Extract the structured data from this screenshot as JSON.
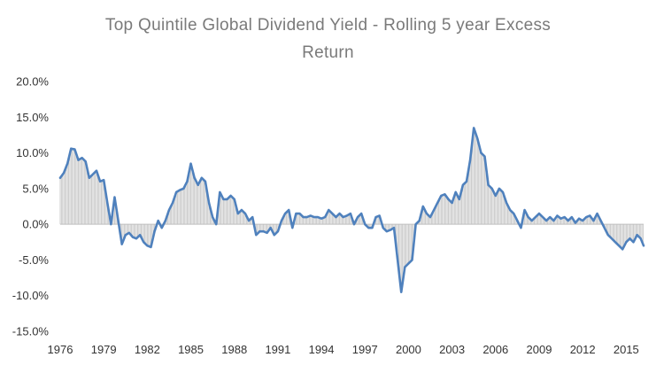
{
  "chart_data": {
    "type": "line",
    "title_lines": [
      "Top Quintile Global Dividend Yield - Rolling 5 year Excess",
      "Return"
    ],
    "xlabel": "",
    "ylabel": "",
    "ylim": [
      -15,
      20
    ],
    "xlim": [
      1976,
      2016.2
    ],
    "x_ticks": [
      "1976",
      "1979",
      "1982",
      "1985",
      "1988",
      "1991",
      "1994",
      "1997",
      "2000",
      "2003",
      "2006",
      "2009",
      "2012",
      "2015"
    ],
    "x_tick_values": [
      1976,
      1979,
      1982,
      1985,
      1988,
      1991,
      1994,
      1997,
      2000,
      2003,
      2006,
      2009,
      2012,
      2015
    ],
    "y_ticks": [
      "-15.0%",
      "-10.0%",
      "-5.0%",
      "0.0%",
      "5.0%",
      "10.0%",
      "15.0%",
      "20.0%"
    ],
    "y_tick_values": [
      -15,
      -10,
      -5,
      0,
      5,
      10,
      15,
      20
    ],
    "grid": false,
    "legend": "none",
    "colors": {
      "line": "#4f81bd",
      "fill": "#c8c8c8",
      "axis": "#bfbfbf",
      "title": "#7a7a7a"
    },
    "series": [
      {
        "x": [
          1976.0,
          1976.25,
          1976.5,
          1976.75,
          1977.0,
          1977.25,
          1977.5,
          1977.75,
          1978.0,
          1978.25,
          1978.5,
          1978.75,
          1979.0,
          1979.25,
          1979.5,
          1979.75,
          1980.0,
          1980.25,
          1980.5,
          1980.75,
          1981.0,
          1981.25,
          1981.5,
          1981.75,
          1982.0,
          1982.25,
          1982.5,
          1982.75,
          1983.0,
          1983.25,
          1983.5,
          1983.75,
          1984.0,
          1984.25,
          1984.5,
          1984.75,
          1985.0,
          1985.25,
          1985.5,
          1985.75,
          1986.0,
          1986.25,
          1986.5,
          1986.75,
          1987.0,
          1987.25,
          1987.5,
          1987.75,
          1988.0,
          1988.25,
          1988.5,
          1988.75,
          1989.0,
          1989.25,
          1989.5,
          1989.75,
          1990.0,
          1990.25,
          1990.5,
          1990.75,
          1991.0,
          1991.25,
          1991.5,
          1991.75,
          1992.0,
          1992.25,
          1992.5,
          1992.75,
          1993.0,
          1993.25,
          1993.5,
          1993.75,
          1994.0,
          1994.25,
          1994.5,
          1994.75,
          1995.0,
          1995.25,
          1995.5,
          1995.75,
          1996.0,
          1996.25,
          1996.5,
          1996.75,
          1997.0,
          1997.25,
          1997.5,
          1997.75,
          1998.0,
          1998.25,
          1998.5,
          1998.75,
          1999.0,
          1999.25,
          1999.5,
          1999.75,
          2000.0,
          2000.25,
          2000.5,
          2000.75,
          2001.0,
          2001.25,
          2001.5,
          2001.75,
          2002.0,
          2002.25,
          2002.5,
          2002.75,
          2003.0,
          2003.25,
          2003.5,
          2003.75,
          2004.0,
          2004.25,
          2004.5,
          2004.75,
          2005.0,
          2005.25,
          2005.5,
          2005.75,
          2006.0,
          2006.25,
          2006.5,
          2006.75,
          2007.0,
          2007.25,
          2007.5,
          2007.75,
          2008.0,
          2008.25,
          2008.5,
          2008.75,
          2009.0,
          2009.25,
          2009.5,
          2009.75,
          2010.0,
          2010.25,
          2010.5,
          2010.75,
          2011.0,
          2011.25,
          2011.5,
          2011.75,
          2012.0,
          2012.25,
          2012.5,
          2012.75,
          2013.0,
          2013.25,
          2013.5,
          2013.75,
          2014.0,
          2014.25,
          2014.5,
          2014.75,
          2015.0,
          2015.25,
          2015.5,
          2015.75,
          2016.0,
          2016.2
        ],
        "values": [
          6.5,
          7.2,
          8.5,
          10.6,
          10.5,
          9.0,
          9.3,
          8.8,
          6.5,
          7.0,
          7.5,
          6.0,
          6.2,
          3.0,
          0.0,
          3.8,
          0.5,
          -2.8,
          -1.5,
          -1.2,
          -1.8,
          -2.0,
          -1.5,
          -2.5,
          -3.0,
          -3.2,
          -1.0,
          0.5,
          -0.5,
          0.5,
          2.0,
          3.0,
          4.5,
          4.8,
          5.0,
          6.0,
          8.5,
          6.5,
          5.5,
          6.5,
          6.0,
          3.0,
          1.0,
          0.0,
          4.5,
          3.5,
          3.5,
          4.0,
          3.5,
          1.5,
          2.0,
          1.5,
          0.5,
          1.0,
          -1.5,
          -1.0,
          -1.0,
          -1.2,
          -0.5,
          -1.5,
          -1.0,
          0.5,
          1.5,
          2.0,
          -0.5,
          1.5,
          1.5,
          1.0,
          1.0,
          1.2,
          1.0,
          1.0,
          0.8,
          1.0,
          2.0,
          1.5,
          1.0,
          1.5,
          1.0,
          1.2,
          1.5,
          0.0,
          1.0,
          1.5,
          0.0,
          -0.5,
          -0.5,
          1.0,
          1.2,
          -0.5,
          -1.0,
          -0.8,
          -0.5,
          -5.0,
          -9.5,
          -6.0,
          -5.5,
          -5.0,
          0.0,
          0.5,
          2.5,
          1.5,
          1.0,
          2.0,
          3.0,
          4.0,
          4.2,
          3.5,
          3.0,
          4.5,
          3.5,
          5.5,
          6.0,
          9.0,
          13.5,
          12.0,
          10.0,
          9.5,
          5.5,
          5.0,
          4.0,
          5.0,
          4.5,
          3.0,
          2.0,
          1.5,
          0.5,
          -0.5,
          2.0,
          1.0,
          0.5,
          1.0,
          1.5,
          1.0,
          0.5,
          1.0,
          0.5,
          1.2,
          0.8,
          1.0,
          0.5,
          1.0,
          0.2,
          0.8,
          0.5,
          1.0,
          1.2,
          0.5,
          1.5,
          0.5,
          -0.5,
          -1.5,
          -2.0,
          -2.5,
          -3.0,
          -3.5,
          -2.5,
          -2.0,
          -2.5,
          -1.5,
          -2.0,
          -3.0
        ]
      }
    ]
  }
}
